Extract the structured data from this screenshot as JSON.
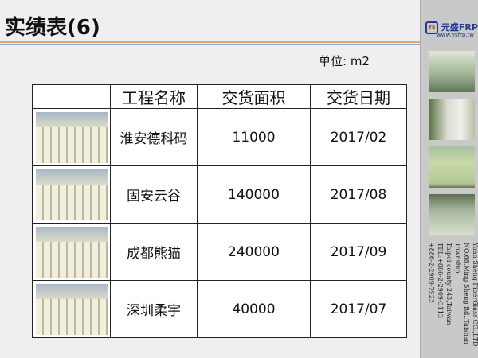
{
  "title": "实绩表(6)",
  "unit": "单位: m2",
  "table": {
    "headers": [
      "",
      "工程名称",
      "交货面积",
      "交货日期"
    ],
    "rows": [
      {
        "name": "淮安德科码",
        "area": "11000",
        "date": "2017/02"
      },
      {
        "name": "固安云谷",
        "area": "140000",
        "date": "2017/08"
      },
      {
        "name": "成都熊猫",
        "area": "240000",
        "date": "2017/09"
      },
      {
        "name": "深圳柔宇",
        "area": "40000",
        "date": "2017/07"
      }
    ]
  },
  "sidebar": {
    "logo": "元盛FRP",
    "web": "www.ysfrp.tw",
    "address": [
      "Yuan Sheng FiberGlass CO.,LTD",
      "NO.68,Ming Sheng Rd.,Taishan Township,",
      "Taipei county 243,Taiwan",
      "TEL:+886-2-2909-3113",
      "+886-2-2909-7923"
    ]
  }
}
